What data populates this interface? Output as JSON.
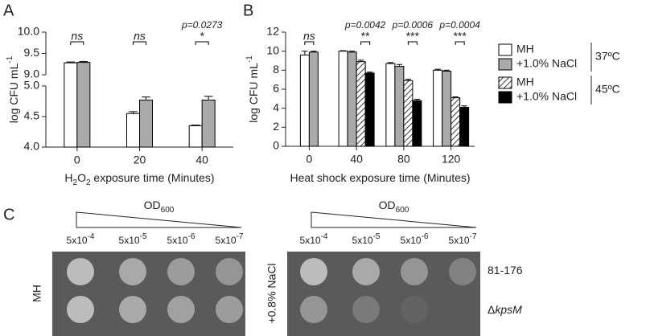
{
  "chart_data": [
    {
      "type": "bar",
      "panel_label": "A",
      "ylabel": [
        {
          "t": "log CFU mL"
        },
        {
          "t": "-1",
          "s": "sup"
        }
      ],
      "xlabel": [
        {
          "t": "H"
        },
        {
          "t": "2",
          "s": "sub"
        },
        {
          "t": "O"
        },
        {
          "t": "2",
          "s": "sub"
        },
        {
          "t": " exposure time (Minutes)"
        }
      ],
      "categories": [
        "0",
        "20",
        "40"
      ],
      "series": [
        {
          "name": "MH",
          "color": "#ffffff",
          "values": [
            9.28,
            4.55,
            4.35
          ],
          "errors": [
            0.02,
            0.03,
            0.01
          ]
        },
        {
          "name": "+1.0% NaCl",
          "color": "#aaaaaa",
          "values": [
            9.29,
            4.77,
            4.77
          ],
          "errors": [
            0.02,
            0.05,
            0.06
          ]
        }
      ],
      "ylim": [
        4.0,
        10.0
      ],
      "axis_break": [
        5.0,
        9.0
      ],
      "yticks": [
        {
          "value": 4,
          "label": "4.0"
        },
        4.5,
        {
          "value": 5,
          "label": "5.0"
        },
        {
          "value": 9,
          "label": "9.0"
        },
        9.5,
        {
          "value": 10,
          "label": "10.0"
        }
      ],
      "annotations": [
        {
          "sig": "ns",
          "pair": [
            0,
            1
          ]
        },
        {
          "sig": "ns",
          "pair": [
            0,
            1
          ]
        },
        {
          "p": "p=0.0273",
          "sig": "*",
          "pair": [
            0,
            1
          ]
        }
      ]
    },
    {
      "type": "bar",
      "panel_label": "B",
      "ylabel": [
        {
          "t": "log CFU mL"
        },
        {
          "t": "-1",
          "s": "sup"
        }
      ],
      "xlabel": [
        {
          "t": "Heat shock exposure time (Minutes)"
        }
      ],
      "categories": [
        "0",
        "40",
        "80",
        "120"
      ],
      "series": [
        {
          "name": "MH",
          "color": "#ffffff",
          "values": [
            9.6,
            10.0,
            8.7,
            8.0
          ],
          "errors": [
            0.4,
            0.05,
            0.1,
            0.1
          ]
        },
        {
          "name": "+1.0% NaCl",
          "color": "#aaaaaa",
          "values": [
            9.9,
            9.9,
            8.4,
            7.9
          ],
          "errors": [
            0.1,
            0.1,
            0.2,
            0.1
          ]
        },
        {
          "name": "MH",
          "color": "#ffffff",
          "hatch": true,
          "values": [
            null,
            8.9,
            6.9,
            5.1
          ],
          "errors": [
            null,
            0.15,
            0.15,
            0.1
          ]
        },
        {
          "name": "+1.0% NaCl",
          "color": "#000000",
          "values": [
            null,
            7.7,
            4.8,
            4.1
          ],
          "errors": [
            null,
            0.1,
            0.15,
            0.15
          ]
        }
      ],
      "ylim": [
        0,
        12
      ],
      "yticks": [
        0,
        2,
        4,
        6,
        8,
        10,
        12
      ],
      "legend": "right",
      "legend_groups": [
        {
          "label": "37ºC",
          "series": [
            0,
            1
          ]
        },
        {
          "label": "45ºC",
          "series": [
            2,
            3
          ]
        }
      ],
      "annotations": [
        {
          "sig": "ns",
          "pair": [
            0,
            1
          ]
        },
        {
          "p": "p=0.0042",
          "sig": "**",
          "pair": [
            2,
            3
          ]
        },
        {
          "p": "p=0.0006",
          "sig": "***",
          "pair": [
            2,
            3
          ]
        },
        {
          "p": "p=0.0004",
          "sig": "***",
          "pair": [
            2,
            3
          ]
        }
      ]
    }
  ],
  "panel_c": {
    "panel_label": "C",
    "od_label": [
      {
        "t": "OD"
      },
      {
        "t": "600",
        "s": "sub"
      }
    ],
    "dilutions": [
      [
        {
          "t": "5x10"
        },
        {
          "t": "-4",
          "s": "sup"
        }
      ],
      [
        {
          "t": "5x10"
        },
        {
          "t": "-5",
          "s": "sup"
        }
      ],
      [
        {
          "t": "5x10"
        },
        {
          "t": "-6",
          "s": "sup"
        }
      ],
      [
        {
          "t": "5x10"
        },
        {
          "t": "-7",
          "s": "sup"
        }
      ]
    ],
    "conditions": [
      "MH",
      "+0.8% NaCl"
    ],
    "strains": [
      [
        {
          "t": "81-176"
        }
      ],
      [
        {
          "t": "Δ"
        },
        {
          "t": "kpsM",
          "s": "i"
        }
      ]
    ]
  }
}
